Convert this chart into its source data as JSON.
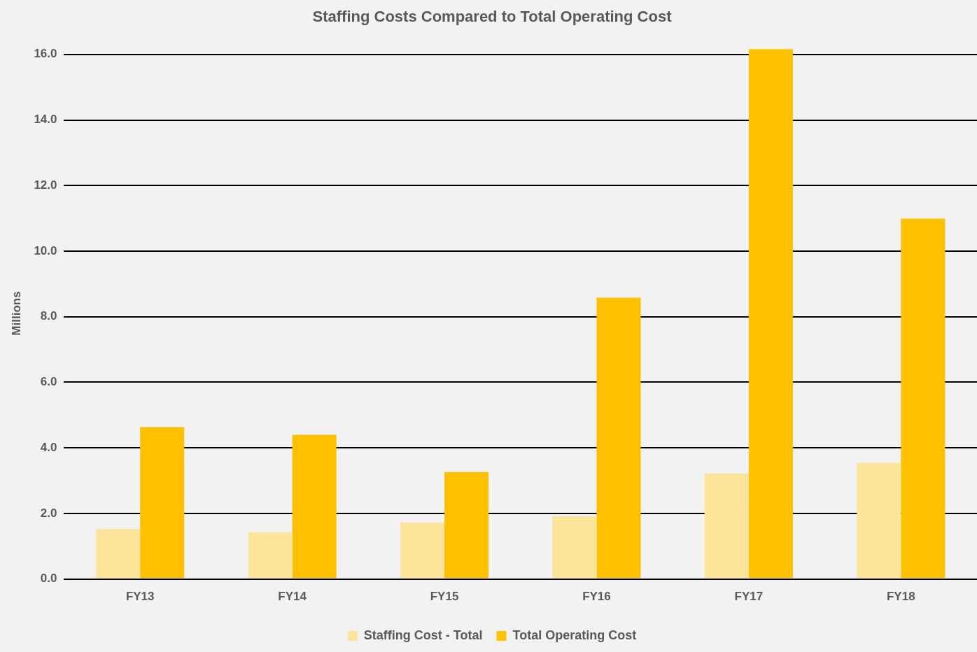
{
  "chart_data": {
    "type": "bar",
    "title": "Staffing Costs Compared to Total Operating Cost",
    "ylabel": "Millions",
    "categories": [
      "FY13",
      "FY14",
      "FY15",
      "FY16",
      "FY17",
      "FY18"
    ],
    "series": [
      {
        "name": "Staffing Cost - Total",
        "color": "#fce49a",
        "values": [
          1.52,
          1.42,
          1.72,
          1.91,
          3.22,
          3.54
        ]
      },
      {
        "name": "Total Operating Cost",
        "color": "#ffc000",
        "values": [
          4.63,
          4.4,
          3.26,
          8.58,
          16.16,
          10.99
        ]
      }
    ],
    "ylim": [
      0,
      16.2
    ],
    "yticks": [
      {
        "value": 0,
        "label": "0.0"
      },
      {
        "value": 2,
        "label": "2.0"
      },
      {
        "value": 4,
        "label": "4.0"
      },
      {
        "value": 6,
        "label": "6.0"
      },
      {
        "value": 8,
        "label": "8.0"
      },
      {
        "value": 10,
        "label": "10.0"
      },
      {
        "value": 12,
        "label": "12.0"
      },
      {
        "value": 14,
        "label": "14.0"
      },
      {
        "value": 16,
        "label": "16.0"
      }
    ],
    "grid": "y",
    "legend": "bottom"
  }
}
